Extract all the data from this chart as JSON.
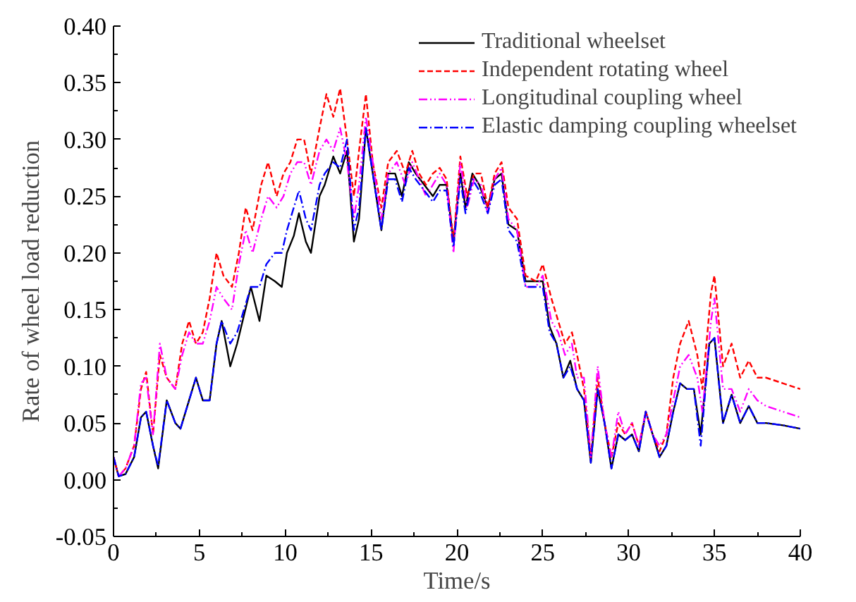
{
  "chart_data": {
    "type": "line",
    "xlabel": "Time/s",
    "ylabel": "Rate of wheel load reduction",
    "xlim": [
      0,
      40
    ],
    "ylim": [
      -0.05,
      0.4
    ],
    "xticks": [
      0,
      5,
      10,
      15,
      20,
      25,
      30,
      35,
      40
    ],
    "yticks": [
      {
        "value": -0.05,
        "label": "-0.05"
      },
      {
        "value": 0,
        "label": "0.00"
      },
      {
        "value": 0.05,
        "label": "0.05"
      },
      {
        "value": 0.1,
        "label": "0.10"
      },
      {
        "value": 0.15,
        "label": "0.15"
      },
      {
        "value": 0.2,
        "label": "0.20"
      },
      {
        "value": 0.25,
        "label": "0.25"
      },
      {
        "value": 0.3,
        "label": "0.30"
      },
      {
        "value": 0.35,
        "label": "0.35"
      },
      {
        "value": 0.4,
        "label": "0.40"
      }
    ],
    "grid": false,
    "legend": "top right",
    "series": [
      {
        "name": "Traditional wheelset",
        "color": "#000000",
        "line_style": "solid",
        "x": [
          0,
          0.3,
          0.7,
          1.2,
          1.6,
          1.9,
          2.3,
          2.6,
          3.1,
          3.6,
          3.9,
          4.4,
          4.8,
          5.2,
          5.6,
          6.0,
          6.3,
          6.8,
          7.2,
          7.6,
          8.0,
          8.5,
          8.9,
          9.4,
          9.8,
          10.1,
          10.5,
          10.8,
          11.2,
          11.5,
          12.0,
          12.3,
          12.8,
          13.2,
          13.6,
          14.0,
          14.3,
          14.7,
          15.1,
          15.6,
          16.0,
          16.4,
          16.8,
          17.2,
          17.6,
          18.1,
          18.6,
          19.0,
          19.4,
          19.8,
          20.2,
          20.5,
          20.9,
          21.3,
          21.8,
          22.2,
          22.6,
          23.0,
          23.5,
          24.0,
          24.5,
          25.0,
          25.4,
          25.8,
          26.2,
          26.6,
          27.0,
          27.4,
          27.8,
          28.2,
          28.6,
          29.0,
          29.4,
          29.8,
          30.2,
          30.6,
          31.0,
          31.4,
          31.8,
          32.2,
          32.6,
          33.0,
          33.4,
          33.8,
          34.2,
          34.7,
          35.0,
          35.5,
          36.0,
          36.5,
          37.0,
          37.5,
          38.0,
          39.0,
          40.0
        ],
        "values": [
          0.02,
          0.003,
          0.005,
          0.02,
          0.055,
          0.06,
          0.03,
          0.01,
          0.07,
          0.05,
          0.045,
          0.07,
          0.09,
          0.07,
          0.07,
          0.12,
          0.14,
          0.1,
          0.12,
          0.145,
          0.17,
          0.14,
          0.18,
          0.175,
          0.17,
          0.2,
          0.215,
          0.235,
          0.21,
          0.2,
          0.25,
          0.26,
          0.285,
          0.27,
          0.29,
          0.21,
          0.23,
          0.31,
          0.27,
          0.22,
          0.27,
          0.27,
          0.25,
          0.28,
          0.27,
          0.26,
          0.25,
          0.26,
          0.26,
          0.21,
          0.27,
          0.24,
          0.27,
          0.26,
          0.24,
          0.265,
          0.27,
          0.225,
          0.22,
          0.175,
          0.175,
          0.175,
          0.135,
          0.12,
          0.09,
          0.105,
          0.08,
          0.07,
          0.015,
          0.08,
          0.05,
          0.01,
          0.04,
          0.035,
          0.04,
          0.025,
          0.06,
          0.04,
          0.02,
          0.03,
          0.06,
          0.085,
          0.08,
          0.08,
          0.04,
          0.12,
          0.125,
          0.05,
          0.075,
          0.05,
          0.065,
          0.05,
          0.05,
          0.048,
          0.045
        ]
      },
      {
        "name": "Independent rotating wheel",
        "color": "#ff0000",
        "line_style": "dashed",
        "x": [
          0,
          0.3,
          0.7,
          1.2,
          1.6,
          1.9,
          2.3,
          2.7,
          3.1,
          3.6,
          4.0,
          4.4,
          4.8,
          5.2,
          5.6,
          6.0,
          6.4,
          6.9,
          7.3,
          7.7,
          8.1,
          8.6,
          9.0,
          9.5,
          9.9,
          10.3,
          10.7,
          11.1,
          11.5,
          12.0,
          12.4,
          12.8,
          13.2,
          13.6,
          14.0,
          14.3,
          14.7,
          15.1,
          15.6,
          16.0,
          16.5,
          17.0,
          17.4,
          17.8,
          18.2,
          18.6,
          19.0,
          19.4,
          19.8,
          20.2,
          20.6,
          21.0,
          21.4,
          21.8,
          22.2,
          22.6,
          23.0,
          23.5,
          24.0,
          24.6,
          25.0,
          25.5,
          25.9,
          26.3,
          26.7,
          27.0,
          27.4,
          27.8,
          28.2,
          28.6,
          29.0,
          29.4,
          29.8,
          30.2,
          30.6,
          31.0,
          31.4,
          31.8,
          32.2,
          32.6,
          33.0,
          33.5,
          34.0,
          34.3,
          34.8,
          35.0,
          35.5,
          36.0,
          36.5,
          37.0,
          37.5,
          38.0,
          39.0,
          40.0
        ],
        "values": [
          0.02,
          0.003,
          0.01,
          0.03,
          0.08,
          0.095,
          0.04,
          0.11,
          0.09,
          0.08,
          0.12,
          0.14,
          0.12,
          0.13,
          0.16,
          0.2,
          0.18,
          0.17,
          0.2,
          0.24,
          0.22,
          0.26,
          0.28,
          0.25,
          0.27,
          0.28,
          0.3,
          0.3,
          0.27,
          0.31,
          0.34,
          0.32,
          0.345,
          0.3,
          0.25,
          0.29,
          0.34,
          0.28,
          0.24,
          0.28,
          0.29,
          0.27,
          0.29,
          0.27,
          0.26,
          0.27,
          0.275,
          0.265,
          0.21,
          0.285,
          0.25,
          0.27,
          0.27,
          0.24,
          0.27,
          0.28,
          0.24,
          0.23,
          0.18,
          0.175,
          0.19,
          0.16,
          0.14,
          0.12,
          0.13,
          0.11,
          0.08,
          0.02,
          0.09,
          0.05,
          0.02,
          0.05,
          0.04,
          0.05,
          0.03,
          0.06,
          0.04,
          0.025,
          0.04,
          0.09,
          0.12,
          0.14,
          0.11,
          0.08,
          0.165,
          0.18,
          0.1,
          0.12,
          0.09,
          0.105,
          0.09,
          0.09,
          0.085,
          0.08
        ]
      },
      {
        "name": "Longitudinal coupling wheel",
        "color": "#ff00ff",
        "line_style": "dotted",
        "x": [
          0,
          0.3,
          0.7,
          1.2,
          1.6,
          1.9,
          2.3,
          2.7,
          3.1,
          3.6,
          4.0,
          4.4,
          4.8,
          5.2,
          5.6,
          6.0,
          6.4,
          6.9,
          7.3,
          7.7,
          8.1,
          8.6,
          9.0,
          9.5,
          9.9,
          10.3,
          10.7,
          11.1,
          11.5,
          12.0,
          12.4,
          12.8,
          13.2,
          13.6,
          14.0,
          14.3,
          14.7,
          15.1,
          15.6,
          16.0,
          16.5,
          17.0,
          17.4,
          17.8,
          18.2,
          18.6,
          19.0,
          19.4,
          19.8,
          20.2,
          20.6,
          21.0,
          21.4,
          21.8,
          22.2,
          22.6,
          23.0,
          23.5,
          24.0,
          24.6,
          25.0,
          25.5,
          25.9,
          26.3,
          26.7,
          27.0,
          27.4,
          27.8,
          28.2,
          28.6,
          29.0,
          29.4,
          29.8,
          30.2,
          30.6,
          31.0,
          31.4,
          31.8,
          32.2,
          32.6,
          33.0,
          33.5,
          34.0,
          34.3,
          34.8,
          35.0,
          35.5,
          36.0,
          36.5,
          37.0,
          37.5,
          38.0,
          39.0,
          40.0
        ],
        "values": [
          0.02,
          0.003,
          0.01,
          0.03,
          0.085,
          0.09,
          0.04,
          0.12,
          0.09,
          0.08,
          0.11,
          0.13,
          0.12,
          0.12,
          0.14,
          0.17,
          0.16,
          0.15,
          0.19,
          0.22,
          0.2,
          0.23,
          0.25,
          0.24,
          0.25,
          0.27,
          0.28,
          0.28,
          0.26,
          0.29,
          0.3,
          0.29,
          0.31,
          0.28,
          0.23,
          0.26,
          0.32,
          0.28,
          0.23,
          0.27,
          0.28,
          0.26,
          0.28,
          0.265,
          0.25,
          0.26,
          0.27,
          0.26,
          0.2,
          0.28,
          0.24,
          0.265,
          0.26,
          0.235,
          0.265,
          0.275,
          0.23,
          0.22,
          0.17,
          0.17,
          0.18,
          0.14,
          0.13,
          0.11,
          0.12,
          0.09,
          0.09,
          0.02,
          0.1,
          0.05,
          0.02,
          0.06,
          0.04,
          0.05,
          0.03,
          0.06,
          0.04,
          0.03,
          0.04,
          0.07,
          0.1,
          0.11,
          0.09,
          0.06,
          0.14,
          0.16,
          0.08,
          0.08,
          0.06,
          0.08,
          0.07,
          0.065,
          0.06,
          0.055
        ]
      },
      {
        "name": "Elastic damping coupling wheelset",
        "color": "#0000ff",
        "line_style": "dashdot",
        "x": [
          0,
          0.3,
          0.7,
          1.2,
          1.6,
          1.9,
          2.3,
          2.6,
          3.1,
          3.6,
          3.9,
          4.4,
          4.8,
          5.2,
          5.6,
          6.0,
          6.3,
          6.8,
          7.2,
          7.6,
          8.0,
          8.5,
          8.9,
          9.4,
          9.8,
          10.1,
          10.5,
          10.8,
          11.2,
          11.5,
          12.0,
          12.3,
          12.8,
          13.2,
          13.6,
          14.0,
          14.3,
          14.7,
          15.1,
          15.6,
          16.0,
          16.4,
          16.8,
          17.2,
          17.6,
          18.1,
          18.6,
          19.0,
          19.4,
          19.8,
          20.2,
          20.5,
          20.9,
          21.3,
          21.8,
          22.2,
          22.6,
          23.0,
          23.5,
          24.0,
          24.5,
          25.0,
          25.4,
          25.8,
          26.2,
          26.6,
          27.0,
          27.4,
          27.8,
          28.2,
          28.6,
          29.0,
          29.4,
          29.8,
          30.2,
          30.6,
          31.0,
          31.4,
          31.8,
          32.2,
          32.6,
          33.0,
          33.4,
          33.8,
          34.2,
          34.7,
          35.0,
          35.5,
          36.0,
          36.5,
          37.0,
          37.5,
          38.0,
          39.0,
          40.0
        ],
        "values": [
          0.02,
          0.003,
          0.005,
          0.02,
          0.055,
          0.06,
          0.03,
          0.012,
          0.07,
          0.05,
          0.045,
          0.07,
          0.09,
          0.07,
          0.07,
          0.12,
          0.14,
          0.12,
          0.13,
          0.15,
          0.17,
          0.17,
          0.19,
          0.2,
          0.2,
          0.22,
          0.24,
          0.255,
          0.23,
          0.22,
          0.26,
          0.27,
          0.28,
          0.275,
          0.3,
          0.22,
          0.24,
          0.31,
          0.27,
          0.22,
          0.265,
          0.265,
          0.245,
          0.275,
          0.265,
          0.255,
          0.245,
          0.255,
          0.255,
          0.205,
          0.265,
          0.235,
          0.265,
          0.255,
          0.235,
          0.26,
          0.265,
          0.22,
          0.21,
          0.17,
          0.17,
          0.17,
          0.13,
          0.12,
          0.09,
          0.1,
          0.08,
          0.07,
          0.015,
          0.08,
          0.05,
          0.01,
          0.04,
          0.035,
          0.04,
          0.025,
          0.06,
          0.04,
          0.02,
          0.03,
          0.06,
          0.085,
          0.08,
          0.08,
          0.03,
          0.12,
          0.125,
          0.05,
          0.075,
          0.05,
          0.065,
          0.05,
          0.05,
          0.048,
          0.045
        ]
      }
    ]
  }
}
